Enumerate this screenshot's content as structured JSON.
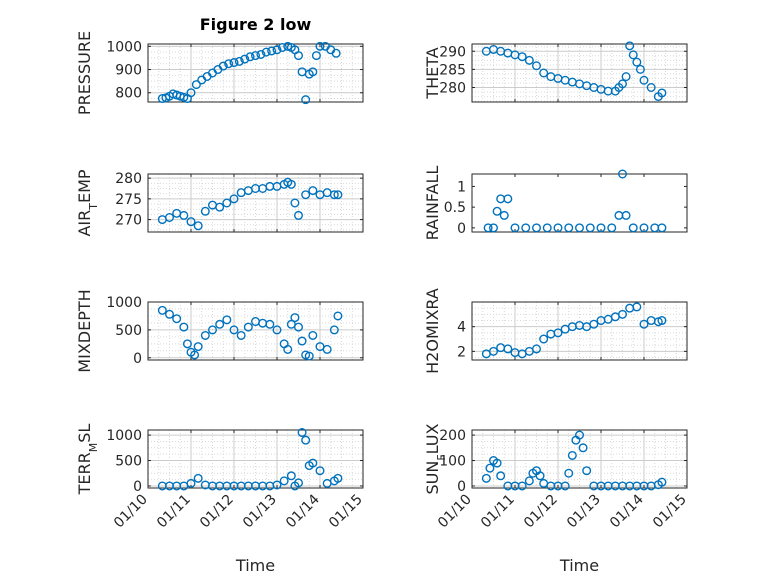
{
  "figure": {
    "title": "Figure 2 low"
  },
  "colors": {
    "marker": "#0072BD",
    "axis": "#262626",
    "grid": "#b8b8b8"
  },
  "chart_data": [
    {
      "type": "scatter",
      "id": "pressure",
      "ylabel": "PRESSURE",
      "ylim": [
        760,
        1010
      ],
      "yticks": [
        800,
        900,
        1000
      ],
      "x_ticklabels_shown": false,
      "grid": "on",
      "title": "Figure 2 low",
      "x": [
        "01/10 08:00",
        "01/10 10:00",
        "01/10 12:00",
        "01/10 14:00",
        "01/10 16:00",
        "01/10 18:00",
        "01/10 20:00",
        "01/10 22:00",
        "01/11 00:00",
        "01/11 03:00",
        "01/11 06:00",
        "01/11 09:00",
        "01/11 12:00",
        "01/11 15:00",
        "01/11 18:00",
        "01/11 21:00",
        "01/12 00:00",
        "01/12 03:00",
        "01/12 06:00",
        "01/12 09:00",
        "01/12 12:00",
        "01/12 15:00",
        "01/12 18:00",
        "01/12 21:00",
        "01/13 00:00",
        "01/13 03:00",
        "01/13 06:00",
        "01/13 08:00",
        "01/13 10:00",
        "01/13 12:00",
        "01/13 14:00",
        "01/13 16:00",
        "01/13 18:00",
        "01/13 20:00",
        "01/13 22:00",
        "01/14 00:00",
        "01/14 03:00",
        "01/14 06:00",
        "01/14 09:00"
      ],
      "y": [
        775,
        778,
        785,
        795,
        790,
        785,
        780,
        775,
        800,
        835,
        855,
        870,
        885,
        900,
        915,
        925,
        930,
        935,
        945,
        955,
        960,
        965,
        975,
        980,
        985,
        995,
        1000,
        995,
        985,
        960,
        890,
        770,
        880,
        890,
        960,
        1000,
        1000,
        985,
        970
      ]
    },
    {
      "type": "scatter",
      "id": "theta",
      "ylabel": "THETA",
      "ylim": [
        276,
        292
      ],
      "yticks": [
        280,
        285,
        290
      ],
      "x_ticklabels_shown": false,
      "grid": "on",
      "x": [
        "01/10 08:00",
        "01/10 12:00",
        "01/10 16:00",
        "01/10 20:00",
        "01/11 00:00",
        "01/11 04:00",
        "01/11 08:00",
        "01/11 12:00",
        "01/11 16:00",
        "01/11 20:00",
        "01/12 00:00",
        "01/12 04:00",
        "01/12 08:00",
        "01/12 12:00",
        "01/12 16:00",
        "01/12 20:00",
        "01/13 00:00",
        "01/13 04:00",
        "01/13 08:00",
        "01/13 10:00",
        "01/13 12:00",
        "01/13 14:00",
        "01/13 16:00",
        "01/13 18:00",
        "01/13 20:00",
        "01/13 22:00",
        "01/14 00:00",
        "01/14 04:00",
        "01/14 08:00",
        "01/14 10:00"
      ],
      "y": [
        290,
        290.5,
        290,
        289.5,
        289,
        288.5,
        287.5,
        286,
        284,
        283,
        282.5,
        282,
        281.5,
        281,
        280.5,
        280,
        279.5,
        279,
        279,
        280,
        281,
        283,
        291.5,
        289,
        287,
        285,
        282,
        280,
        277.5,
        278.5
      ]
    },
    {
      "type": "scatter",
      "id": "air-temp",
      "ylabel": "AIR_TEMP",
      "ylim": [
        267,
        281
      ],
      "yticks": [
        270,
        275,
        280
      ],
      "x_ticklabels_shown": false,
      "grid": "on",
      "x": [
        "01/10 08:00",
        "01/10 12:00",
        "01/10 16:00",
        "01/10 20:00",
        "01/11 00:00",
        "01/11 04:00",
        "01/11 08:00",
        "01/11 12:00",
        "01/11 16:00",
        "01/11 20:00",
        "01/12 00:00",
        "01/12 04:00",
        "01/12 08:00",
        "01/12 12:00",
        "01/12 16:00",
        "01/12 20:00",
        "01/13 00:00",
        "01/13 04:00",
        "01/13 06:00",
        "01/13 08:00",
        "01/13 10:00",
        "01/13 12:00",
        "01/13 16:00",
        "01/13 20:00",
        "01/14 00:00",
        "01/14 04:00",
        "01/14 08:00",
        "01/14 10:00"
      ],
      "y": [
        270,
        270.5,
        271.5,
        271,
        269.5,
        268.5,
        272,
        273.5,
        273,
        274,
        275,
        276.5,
        277,
        277.5,
        277.5,
        278,
        278,
        278.5,
        279,
        278.5,
        274,
        271,
        276,
        277,
        276,
        276.5,
        276,
        276
      ]
    },
    {
      "type": "scatter",
      "id": "rainfall",
      "ylabel": "RAINFALL",
      "ylim": [
        -0.1,
        1.3
      ],
      "yticks": [
        0,
        0.5,
        1
      ],
      "ytick_labels": [
        "0",
        "0.5",
        "1"
      ],
      "x_ticklabels_shown": false,
      "grid": "off",
      "x": [
        "01/10 09:00",
        "01/10 12:00",
        "01/10 14:00",
        "01/10 16:00",
        "01/10 18:00",
        "01/10 20:00",
        "01/11 00:00",
        "01/11 06:00",
        "01/11 12:00",
        "01/11 18:00",
        "01/12 00:00",
        "01/12 06:00",
        "01/12 12:00",
        "01/12 18:00",
        "01/13 00:00",
        "01/13 06:00",
        "01/13 10:00",
        "01/13 12:00",
        "01/13 14:00",
        "01/13 18:00",
        "01/14 00:00",
        "01/14 06:00",
        "01/14 10:00"
      ],
      "y": [
        0,
        0,
        0.4,
        0.7,
        0.3,
        0.7,
        0,
        0,
        0,
        0,
        0,
        0,
        0,
        0,
        0,
        0,
        0.3,
        1.3,
        0.3,
        0,
        0,
        0,
        0
      ]
    },
    {
      "type": "scatter",
      "id": "mixdepth",
      "ylabel": "MIXDEPTH",
      "ylim": [
        -40,
        1000
      ],
      "yticks": [
        0,
        500,
        1000
      ],
      "x_ticklabels_shown": false,
      "grid": "on",
      "x": [
        "01/10 08:00",
        "01/10 12:00",
        "01/10 16:00",
        "01/10 20:00",
        "01/10 22:00",
        "01/11 00:00",
        "01/11 02:00",
        "01/11 04:00",
        "01/11 08:00",
        "01/11 12:00",
        "01/11 16:00",
        "01/11 20:00",
        "01/12 00:00",
        "01/12 04:00",
        "01/12 08:00",
        "01/12 12:00",
        "01/12 16:00",
        "01/12 20:00",
        "01/13 00:00",
        "01/13 04:00",
        "01/13 06:00",
        "01/13 08:00",
        "01/13 10:00",
        "01/13 12:00",
        "01/13 14:00",
        "01/13 16:00",
        "01/13 18:00",
        "01/13 20:00",
        "01/14 00:00",
        "01/14 04:00",
        "01/14 08:00",
        "01/14 10:00"
      ],
      "y": [
        850,
        780,
        700,
        550,
        250,
        100,
        50,
        200,
        400,
        500,
        600,
        680,
        500,
        400,
        550,
        650,
        620,
        600,
        500,
        250,
        150,
        600,
        720,
        550,
        300,
        50,
        30,
        400,
        200,
        150,
        500,
        750
      ]
    },
    {
      "type": "scatter",
      "id": "h2omixra",
      "ylabel": "H2OMIXRA",
      "ylim": [
        1.3,
        6.0
      ],
      "yticks": [
        2,
        4
      ],
      "x_ticklabels_shown": false,
      "grid": "on",
      "x": [
        "01/10 08:00",
        "01/10 12:00",
        "01/10 16:00",
        "01/10 20:00",
        "01/11 00:00",
        "01/11 04:00",
        "01/11 08:00",
        "01/11 12:00",
        "01/11 16:00",
        "01/11 20:00",
        "01/12 00:00",
        "01/12 04:00",
        "01/12 08:00",
        "01/12 12:00",
        "01/12 16:00",
        "01/12 20:00",
        "01/13 00:00",
        "01/13 04:00",
        "01/13 08:00",
        "01/13 12:00",
        "01/13 16:00",
        "01/13 20:00",
        "01/14 00:00",
        "01/14 04:00",
        "01/14 08:00",
        "01/14 10:00"
      ],
      "y": [
        1.8,
        2.0,
        2.3,
        2.2,
        1.9,
        1.8,
        2.0,
        2.2,
        3.0,
        3.4,
        3.5,
        3.8,
        4.0,
        4.1,
        4.0,
        4.2,
        4.5,
        4.6,
        4.8,
        5.0,
        5.5,
        5.6,
        4.2,
        4.5,
        4.4,
        4.5
      ]
    },
    {
      "type": "scatter",
      "id": "terr-msl",
      "ylabel": "TERR_MSL",
      "ylim": [
        -40,
        1100
      ],
      "yticks": [
        0,
        500,
        1000
      ],
      "x_ticklabels_shown": true,
      "xlabel": "Time",
      "grid": "on",
      "x": [
        "01/10 08:00",
        "01/10 12:00",
        "01/10 16:00",
        "01/10 20:00",
        "01/11 00:00",
        "01/11 04:00",
        "01/11 08:00",
        "01/11 12:00",
        "01/11 16:00",
        "01/11 20:00",
        "01/12 00:00",
        "01/12 04:00",
        "01/12 08:00",
        "01/12 12:00",
        "01/12 16:00",
        "01/12 20:00",
        "01/13 00:00",
        "01/13 04:00",
        "01/13 08:00",
        "01/13 10:00",
        "01/13 12:00",
        "01/13 14:00",
        "01/13 16:00",
        "01/13 18:00",
        "01/13 20:00",
        "01/14 00:00",
        "01/14 04:00",
        "01/14 08:00",
        "01/14 10:00"
      ],
      "y": [
        0,
        0,
        0,
        0,
        50,
        150,
        20,
        0,
        0,
        0,
        0,
        0,
        0,
        0,
        0,
        0,
        20,
        100,
        200,
        0,
        60,
        1050,
        900,
        400,
        450,
        300,
        50,
        100,
        150
      ]
    },
    {
      "type": "scatter",
      "id": "sun-flux",
      "ylabel": "SUN_FLUX",
      "ylim": [
        -8,
        220
      ],
      "yticks": [
        0,
        100,
        200
      ],
      "x_ticklabels_shown": true,
      "xlabel": "Time",
      "grid": "on",
      "x": [
        "01/10 08:00",
        "01/10 10:00",
        "01/10 12:00",
        "01/10 14:00",
        "01/10 16:00",
        "01/10 20:00",
        "01/11 00:00",
        "01/11 04:00",
        "01/11 08:00",
        "01/11 10:00",
        "01/11 12:00",
        "01/11 14:00",
        "01/11 16:00",
        "01/11 20:00",
        "01/12 00:00",
        "01/12 04:00",
        "01/12 06:00",
        "01/12 08:00",
        "01/12 10:00",
        "01/12 12:00",
        "01/12 14:00",
        "01/12 16:00",
        "01/12 20:00",
        "01/13 00:00",
        "01/13 04:00",
        "01/13 08:00",
        "01/13 12:00",
        "01/13 16:00",
        "01/13 20:00",
        "01/14 00:00",
        "01/14 04:00",
        "01/14 08:00",
        "01/14 10:00"
      ],
      "y": [
        30,
        70,
        100,
        90,
        40,
        0,
        0,
        0,
        20,
        50,
        60,
        40,
        10,
        0,
        0,
        0,
        50,
        120,
        180,
        200,
        150,
        60,
        0,
        0,
        0,
        0,
        0,
        0,
        0,
        0,
        0,
        5,
        15
      ]
    }
  ],
  "xaxis": {
    "xlim": [
      "01/10 00:00",
      "01/15 00:00"
    ],
    "tick_labels": [
      "01/10",
      "01/11",
      "01/12",
      "01/13",
      "01/14",
      "01/15"
    ]
  }
}
